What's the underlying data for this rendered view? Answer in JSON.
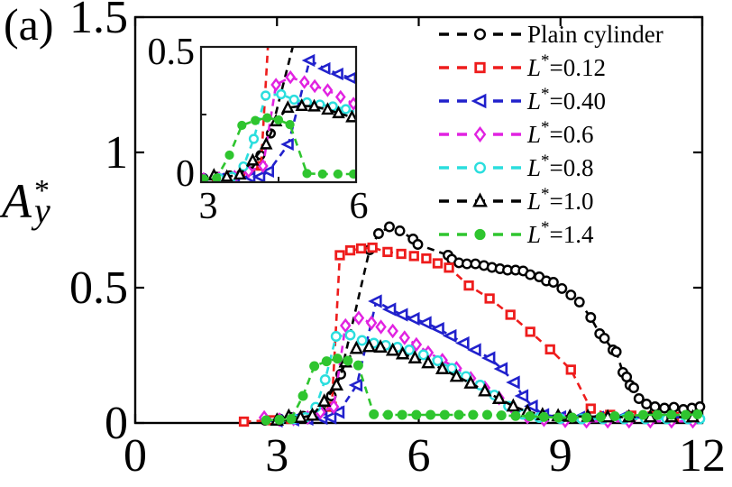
{
  "panel_label": "(a)",
  "chart_data": {
    "type": "line",
    "title": "",
    "xlabel": "",
    "ylabel": "Ay*",
    "ylabel_parts": {
      "base": "A",
      "sup": "*",
      "sub": "y"
    },
    "xlim": [
      0,
      12
    ],
    "ylim": [
      0,
      1.5
    ],
    "xticks": [
      0,
      3,
      6,
      9,
      12
    ],
    "xtick_labels": [
      "0",
      "3",
      "6",
      "9",
      "12"
    ],
    "yticks": [
      0,
      0.5,
      1,
      1.5
    ],
    "ytick_labels": [
      "0",
      "0.5",
      "1",
      "1.5"
    ],
    "grid": false,
    "legend_position": "top-right-inside",
    "line_style": "dashed",
    "inset": {
      "xlim": [
        3,
        6
      ],
      "ylim": [
        0,
        0.5
      ],
      "xticks": [
        3,
        6
      ],
      "xtick_labels": [
        "3",
        "6"
      ],
      "yticks": [
        0,
        0.5
      ],
      "ytick_labels": [
        "0",
        "0.5"
      ]
    },
    "series": [
      {
        "name": "Plain cylinder",
        "legend": {
          "base": "Plain cylinder",
          "sup": "",
          "rest": ""
        },
        "color": "#000000",
        "marker": "circle-open",
        "points": [
          [
            2.75,
            0.01
          ],
          [
            3.05,
            0.015
          ],
          [
            3.3,
            0.02
          ],
          [
            3.55,
            0.025
          ],
          [
            3.78,
            0.03
          ],
          [
            3.95,
            0.04
          ],
          [
            4.15,
            0.1
          ],
          [
            4.35,
            0.18
          ],
          [
            4.96,
            0.64
          ],
          [
            5.15,
            0.7
          ],
          [
            5.38,
            0.725
          ],
          [
            5.6,
            0.71
          ],
          [
            5.88,
            0.68
          ],
          [
            5.98,
            0.66
          ],
          [
            6.62,
            0.62
          ],
          [
            6.7,
            0.605
          ],
          [
            6.85,
            0.592
          ],
          [
            7.02,
            0.588
          ],
          [
            7.2,
            0.588
          ],
          [
            7.38,
            0.582
          ],
          [
            7.55,
            0.575
          ],
          [
            7.72,
            0.57
          ],
          [
            7.88,
            0.565
          ],
          [
            8.05,
            0.565
          ],
          [
            8.21,
            0.562
          ],
          [
            8.36,
            0.548
          ],
          [
            8.55,
            0.54
          ],
          [
            8.7,
            0.525
          ],
          [
            8.85,
            0.52
          ],
          [
            9.03,
            0.497
          ],
          [
            9.22,
            0.473
          ],
          [
            9.4,
            0.447
          ],
          [
            9.64,
            0.39
          ],
          [
            9.83,
            0.33
          ],
          [
            9.93,
            0.313
          ],
          [
            10.11,
            0.27
          ],
          [
            10.18,
            0.263
          ],
          [
            10.32,
            0.187
          ],
          [
            10.4,
            0.17
          ],
          [
            10.47,
            0.14
          ],
          [
            10.55,
            0.13
          ],
          [
            10.66,
            0.09
          ],
          [
            10.82,
            0.07
          ],
          [
            11.0,
            0.06
          ],
          [
            11.2,
            0.055
          ],
          [
            11.4,
            0.058
          ],
          [
            11.6,
            0.05
          ],
          [
            11.78,
            0.055
          ],
          [
            11.95,
            0.06
          ]
        ]
      },
      {
        "name": "L*=0.12",
        "legend": {
          "base": "L",
          "sup": "*",
          "rest": "=0.12"
        },
        "color": "#ee1c1c",
        "marker": "square-open",
        "points": [
          [
            2.3,
            0.005
          ],
          [
            2.9,
            0.01
          ],
          [
            3.3,
            0.015
          ],
          [
            3.62,
            0.02
          ],
          [
            3.9,
            0.03
          ],
          [
            4.16,
            0.06
          ],
          [
            4.33,
            0.62
          ],
          [
            4.55,
            0.638
          ],
          [
            4.78,
            0.645
          ],
          [
            5.02,
            0.648
          ],
          [
            5.34,
            0.632
          ],
          [
            5.63,
            0.625
          ],
          [
            5.9,
            0.617
          ],
          [
            6.16,
            0.608
          ],
          [
            6.4,
            0.59
          ],
          [
            6.64,
            0.574
          ],
          [
            7.06,
            0.508
          ],
          [
            7.5,
            0.46
          ],
          [
            7.94,
            0.4
          ],
          [
            8.36,
            0.337
          ],
          [
            8.78,
            0.272
          ],
          [
            9.22,
            0.197
          ],
          [
            9.64,
            0.053
          ],
          [
            10.05,
            0.03
          ],
          [
            10.5,
            0.027
          ],
          [
            10.95,
            0.025
          ],
          [
            11.4,
            0.022
          ],
          [
            11.85,
            0.022
          ]
        ]
      },
      {
        "name": "L*=0.40",
        "legend": {
          "base": "L",
          "sup": "*",
          "rest": "=0.40"
        },
        "color": "#2121cc",
        "marker": "triangle-left-open",
        "points": [
          [
            3.0,
            0.008
          ],
          [
            3.35,
            0.012
          ],
          [
            3.65,
            0.015
          ],
          [
            3.95,
            0.018
          ],
          [
            4.14,
            0.02
          ],
          [
            4.31,
            0.04
          ],
          [
            4.69,
            0.14
          ],
          [
            5.1,
            0.45
          ],
          [
            5.4,
            0.42
          ],
          [
            5.65,
            0.4
          ],
          [
            5.9,
            0.385
          ],
          [
            6.15,
            0.37
          ],
          [
            6.42,
            0.348
          ],
          [
            6.68,
            0.322
          ],
          [
            6.95,
            0.295
          ],
          [
            7.2,
            0.27
          ],
          [
            7.5,
            0.24
          ],
          [
            7.76,
            0.2
          ],
          [
            8.02,
            0.15
          ],
          [
            8.2,
            0.1
          ],
          [
            8.4,
            0.062
          ],
          [
            8.64,
            0.03
          ],
          [
            9.0,
            0.022
          ],
          [
            9.4,
            0.02
          ],
          [
            9.8,
            0.02
          ],
          [
            10.3,
            0.02
          ],
          [
            10.8,
            0.02
          ],
          [
            11.3,
            0.02
          ],
          [
            11.8,
            0.022
          ]
        ]
      },
      {
        "name": "L*=0.6",
        "legend": {
          "base": "L",
          "sup": "*",
          "rest": "=0.6"
        },
        "color": "#e122e1",
        "marker": "diamond-open",
        "points": [
          [
            2.73,
            0.02
          ],
          [
            3.05,
            0.012
          ],
          [
            3.35,
            0.015
          ],
          [
            3.65,
            0.02
          ],
          [
            3.92,
            0.04
          ],
          [
            4.2,
            0.06
          ],
          [
            4.45,
            0.36
          ],
          [
            4.73,
            0.388
          ],
          [
            5.0,
            0.37
          ],
          [
            5.2,
            0.355
          ],
          [
            5.45,
            0.34
          ],
          [
            5.7,
            0.315
          ],
          [
            5.95,
            0.29
          ],
          [
            6.2,
            0.26
          ],
          [
            6.5,
            0.232
          ],
          [
            6.8,
            0.202
          ],
          [
            7.1,
            0.165
          ],
          [
            7.4,
            0.13
          ],
          [
            7.7,
            0.092
          ],
          [
            8.0,
            0.052
          ],
          [
            8.3,
            0.022
          ],
          [
            8.65,
            0.012
          ],
          [
            9.1,
            0.008
          ],
          [
            9.55,
            0.006
          ],
          [
            10.0,
            0.006
          ],
          [
            10.45,
            0.006
          ],
          [
            10.9,
            0.006
          ],
          [
            11.35,
            0.006
          ],
          [
            11.8,
            0.006
          ]
        ]
      },
      {
        "name": "L*=0.8",
        "legend": {
          "base": "L",
          "sup": "*",
          "rest": "=0.8"
        },
        "color": "#2bdede",
        "marker": "circle-open",
        "points": [
          [
            3.05,
            0.01
          ],
          [
            3.35,
            0.015
          ],
          [
            3.6,
            0.02
          ],
          [
            3.82,
            0.058
          ],
          [
            4.02,
            0.16
          ],
          [
            4.25,
            0.32
          ],
          [
            4.55,
            0.325
          ],
          [
            4.8,
            0.305
          ],
          [
            5.05,
            0.295
          ],
          [
            5.3,
            0.287
          ],
          [
            5.55,
            0.28
          ],
          [
            5.8,
            0.27
          ],
          [
            6.1,
            0.252
          ],
          [
            6.4,
            0.23
          ],
          [
            6.7,
            0.202
          ],
          [
            7.0,
            0.172
          ],
          [
            7.3,
            0.14
          ],
          [
            7.6,
            0.103
          ],
          [
            7.9,
            0.062
          ],
          [
            8.2,
            0.032
          ],
          [
            8.55,
            0.02
          ],
          [
            9.0,
            0.016
          ],
          [
            9.45,
            0.015
          ],
          [
            9.9,
            0.015
          ],
          [
            10.35,
            0.015
          ],
          [
            10.8,
            0.015
          ],
          [
            11.25,
            0.015
          ],
          [
            11.7,
            0.015
          ],
          [
            11.95,
            0.015
          ]
        ]
      },
      {
        "name": "L*=1.0",
        "legend": {
          "base": "L",
          "sup": "*",
          "rest": "=1.0"
        },
        "color": "#000000",
        "marker": "triangle-up-open",
        "points": [
          [
            3.0,
            0.01
          ],
          [
            3.25,
            0.025
          ],
          [
            3.5,
            0.02
          ],
          [
            3.75,
            0.028
          ],
          [
            4.0,
            0.08
          ],
          [
            4.26,
            0.14
          ],
          [
            4.45,
            0.225
          ],
          [
            4.68,
            0.275
          ],
          [
            4.95,
            0.282
          ],
          [
            5.19,
            0.28
          ],
          [
            5.45,
            0.268
          ],
          [
            5.66,
            0.255
          ],
          [
            5.92,
            0.24
          ],
          [
            6.2,
            0.222
          ],
          [
            6.5,
            0.2
          ],
          [
            6.8,
            0.172
          ],
          [
            7.1,
            0.147
          ],
          [
            7.4,
            0.118
          ],
          [
            7.7,
            0.09
          ],
          [
            8.0,
            0.062
          ],
          [
            8.3,
            0.042
          ],
          [
            8.62,
            0.03
          ],
          [
            8.95,
            0.026
          ],
          [
            9.2,
            0.024
          ],
          [
            9.58,
            0.024
          ],
          [
            10.0,
            0.022
          ],
          [
            10.45,
            0.022
          ],
          [
            10.9,
            0.022
          ],
          [
            11.35,
            0.022
          ],
          [
            11.8,
            0.022
          ]
        ]
      },
      {
        "name": "L*=1.4",
        "legend": {
          "base": "L",
          "sup": "*",
          "rest": "=1.4"
        },
        "color": "#2fc52f",
        "marker": "circle-filled",
        "points": [
          [
            2.77,
            0.01
          ],
          [
            3.05,
            0.012
          ],
          [
            3.3,
            0.015
          ],
          [
            3.55,
            0.1
          ],
          [
            3.79,
            0.21
          ],
          [
            4.05,
            0.228
          ],
          [
            4.28,
            0.238
          ],
          [
            4.5,
            0.23
          ],
          [
            4.72,
            0.213
          ],
          [
            5.05,
            0.032
          ],
          [
            5.35,
            0.03
          ],
          [
            5.65,
            0.03
          ],
          [
            5.95,
            0.03
          ],
          [
            6.25,
            0.03
          ],
          [
            6.55,
            0.03
          ],
          [
            6.85,
            0.03
          ],
          [
            7.15,
            0.03
          ],
          [
            7.45,
            0.03
          ],
          [
            7.75,
            0.028
          ],
          [
            8.05,
            0.026
          ],
          [
            8.35,
            0.025
          ],
          [
            8.65,
            0.022
          ],
          [
            8.95,
            0.02
          ],
          [
            9.25,
            0.02
          ],
          [
            9.55,
            0.02
          ],
          [
            9.85,
            0.022
          ],
          [
            10.15,
            0.025
          ],
          [
            10.45,
            0.026
          ],
          [
            10.75,
            0.03
          ],
          [
            11.05,
            0.03
          ],
          [
            11.35,
            0.03
          ],
          [
            11.65,
            0.03
          ],
          [
            11.9,
            0.032
          ]
        ]
      }
    ]
  }
}
